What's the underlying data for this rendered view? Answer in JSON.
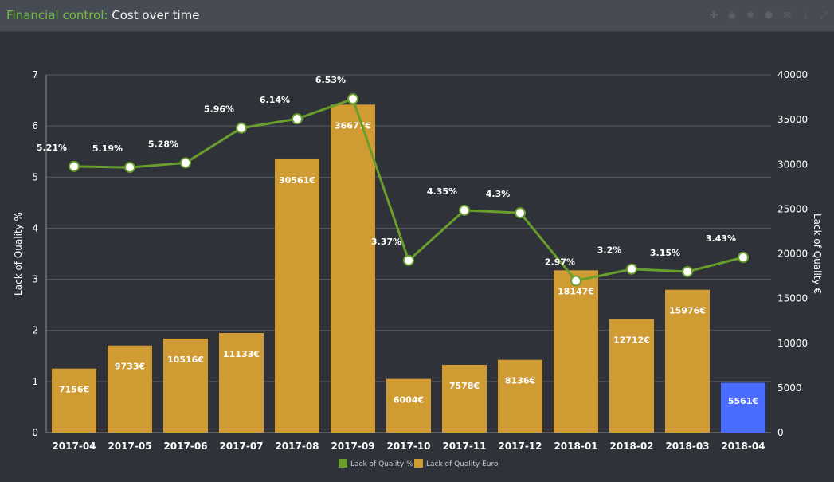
{
  "header": {
    "title_prefix": "Financial control:",
    "title_main": "Cost over time"
  },
  "toolbar": {
    "icons": [
      "plus-icon",
      "eye-icon",
      "gear-icon",
      "settings-icon",
      "mail-icon",
      "download-icon",
      "expand-icon"
    ]
  },
  "colors": {
    "bar": "#d19b34",
    "bar_highlight": "#4a6cff",
    "line": "#6a9e2c",
    "marker_fill": "#ffffff",
    "grid": "#5a5d64",
    "text": "#ffffff"
  },
  "chart_data": {
    "type": "bar",
    "categories": [
      "2017-04",
      "2017-05",
      "2017-06",
      "2017-07",
      "2017-08",
      "2017-09",
      "2017-10",
      "2017-11",
      "2017-12",
      "2018-01",
      "2018-02",
      "2018-03",
      "2018-04"
    ],
    "series": [
      {
        "name": "Lack of Quality Euro",
        "axis": "right",
        "values": [
          7156,
          9733,
          10516,
          11133,
          30561,
          36677,
          6004,
          7578,
          8136,
          18147,
          12712,
          15976,
          5561
        ],
        "labels": [
          "7156€",
          "9733€",
          "10516€",
          "11133€",
          "30561€",
          "36677€",
          "6004€",
          "7578€",
          "8136€",
          "18147€",
          "12712€",
          "15976€",
          "5561€"
        ],
        "highlight_index": 12
      },
      {
        "name": "Lack of Quality %",
        "axis": "left",
        "type": "line",
        "values": [
          5.21,
          5.19,
          5.28,
          5.96,
          6.14,
          6.53,
          3.37,
          4.35,
          4.3,
          2.97,
          3.2,
          3.15,
          3.43
        ],
        "labels": [
          "5.21%",
          "5.19%",
          "5.28%",
          "5.96%",
          "6.14%",
          "6.53%",
          "3.37%",
          "4.35%",
          "4.3%",
          "2.97%",
          "3.2%",
          "3.15%",
          "3.43%"
        ]
      }
    ],
    "ylabel_left": "Lack of Quality %",
    "ylabel_right": "Lack of Quality €",
    "ylim_left": [
      0,
      7
    ],
    "yticks_left": [
      "0",
      "1",
      "2",
      "3",
      "4",
      "5",
      "6",
      "7"
    ],
    "ylim_right": [
      0,
      40000
    ],
    "yticks_right": [
      "0",
      "5000",
      "10000",
      "15000",
      "20000",
      "25000",
      "30000",
      "35000",
      "40000"
    ],
    "grid": true,
    "legend_position": "bottom",
    "legend": [
      "Lack of Quality %",
      "Lack of Quality Euro"
    ]
  }
}
